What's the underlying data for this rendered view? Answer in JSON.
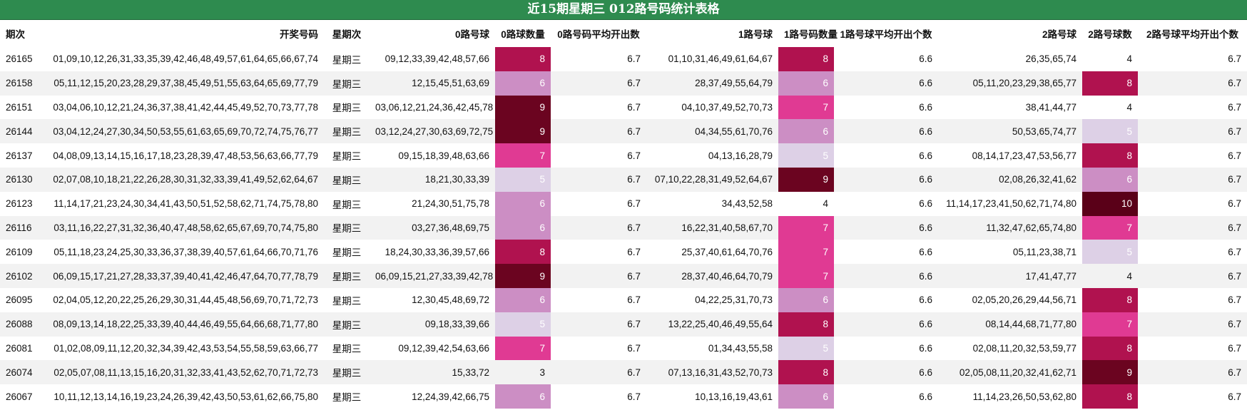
{
  "title": "近15期星期三 012路号码统计表格",
  "headers": [
    "期次",
    "开奖号码",
    "星期次",
    "0路号球",
    "0路球数量",
    "0路号码平均开出数",
    "1路号球",
    "1路号码数量",
    "1路号球平均开出个数",
    "2路号球",
    "2路号球数",
    "2路号球平均开出个数"
  ],
  "colors": {
    "3": "#ffffff",
    "4": "#f2f2f2",
    "5": "#ddd0e6",
    "6": "#cc8ec4",
    "7": "#e03a93",
    "8": "#b0124f",
    "9": "#6b0420",
    "10": "#5a0018"
  },
  "rows": [
    {
      "issue": "26165",
      "numbers": "01,09,10,12,26,31,33,35,39,42,46,48,49,57,61,64,65,66,67,74",
      "weekday": "星期三",
      "z0": "09,12,33,39,42,48,57,66",
      "c0": "8",
      "a0": "6.7",
      "z1": "01,10,31,46,49,61,64,67",
      "c1": "8",
      "a1": "6.6",
      "z2": "26,35,65,74",
      "c2": "4",
      "a2": "6.7"
    },
    {
      "issue": "26158",
      "numbers": "05,11,12,15,20,23,28,29,37,38,45,49,51,55,63,64,65,69,77,79",
      "weekday": "星期三",
      "z0": "12,15,45,51,63,69",
      "c0": "6",
      "a0": "6.7",
      "z1": "28,37,49,55,64,79",
      "c1": "6",
      "a1": "6.6",
      "z2": "05,11,20,23,29,38,65,77",
      "c2": "8",
      "a2": "6.7"
    },
    {
      "issue": "26151",
      "numbers": "03,04,06,10,12,21,24,36,37,38,41,42,44,45,49,52,70,73,77,78",
      "weekday": "星期三",
      "z0": "03,06,12,21,24,36,42,45,78",
      "c0": "9",
      "a0": "6.7",
      "z1": "04,10,37,49,52,70,73",
      "c1": "7",
      "a1": "6.6",
      "z2": "38,41,44,77",
      "c2": "4",
      "a2": "6.7"
    },
    {
      "issue": "26144",
      "numbers": "03,04,12,24,27,30,34,50,53,55,61,63,65,69,70,72,74,75,76,77",
      "weekday": "星期三",
      "z0": "03,12,24,27,30,63,69,72,75",
      "c0": "9",
      "a0": "6.7",
      "z1": "04,34,55,61,70,76",
      "c1": "6",
      "a1": "6.6",
      "z2": "50,53,65,74,77",
      "c2": "5",
      "a2": "6.7"
    },
    {
      "issue": "26137",
      "numbers": "04,08,09,13,14,15,16,17,18,23,28,39,47,48,53,56,63,66,77,79",
      "weekday": "星期三",
      "z0": "09,15,18,39,48,63,66",
      "c0": "7",
      "a0": "6.7",
      "z1": "04,13,16,28,79",
      "c1": "5",
      "a1": "6.6",
      "z2": "08,14,17,23,47,53,56,77",
      "c2": "8",
      "a2": "6.7"
    },
    {
      "issue": "26130",
      "numbers": "02,07,08,10,18,21,22,26,28,30,31,32,33,39,41,49,52,62,64,67",
      "weekday": "星期三",
      "z0": "18,21,30,33,39",
      "c0": "5",
      "a0": "6.7",
      "z1": "07,10,22,28,31,49,52,64,67",
      "c1": "9",
      "a1": "6.6",
      "z2": "02,08,26,32,41,62",
      "c2": "6",
      "a2": "6.7"
    },
    {
      "issue": "26123",
      "numbers": "11,14,17,21,23,24,30,34,41,43,50,51,52,58,62,71,74,75,78,80",
      "weekday": "星期三",
      "z0": "21,24,30,51,75,78",
      "c0": "6",
      "a0": "6.7",
      "z1": "34,43,52,58",
      "c1": "4",
      "a1": "6.6",
      "z2": "11,14,17,23,41,50,62,71,74,80",
      "c2": "10",
      "a2": "6.7"
    },
    {
      "issue": "26116",
      "numbers": "03,11,16,22,27,31,32,36,40,47,48,58,62,65,67,69,70,74,75,80",
      "weekday": "星期三",
      "z0": "03,27,36,48,69,75",
      "c0": "6",
      "a0": "6.7",
      "z1": "16,22,31,40,58,67,70",
      "c1": "7",
      "a1": "6.6",
      "z2": "11,32,47,62,65,74,80",
      "c2": "7",
      "a2": "6.7"
    },
    {
      "issue": "26109",
      "numbers": "05,11,18,23,24,25,30,33,36,37,38,39,40,57,61,64,66,70,71,76",
      "weekday": "星期三",
      "z0": "18,24,30,33,36,39,57,66",
      "c0": "8",
      "a0": "6.7",
      "z1": "25,37,40,61,64,70,76",
      "c1": "7",
      "a1": "6.6",
      "z2": "05,11,23,38,71",
      "c2": "5",
      "a2": "6.7"
    },
    {
      "issue": "26102",
      "numbers": "06,09,15,17,21,27,28,33,37,39,40,41,42,46,47,64,70,77,78,79",
      "weekday": "星期三",
      "z0": "06,09,15,21,27,33,39,42,78",
      "c0": "9",
      "a0": "6.7",
      "z1": "28,37,40,46,64,70,79",
      "c1": "7",
      "a1": "6.6",
      "z2": "17,41,47,77",
      "c2": "4",
      "a2": "6.7"
    },
    {
      "issue": "26095",
      "numbers": "02,04,05,12,20,22,25,26,29,30,31,44,45,48,56,69,70,71,72,73",
      "weekday": "星期三",
      "z0": "12,30,45,48,69,72",
      "c0": "6",
      "a0": "6.7",
      "z1": "04,22,25,31,70,73",
      "c1": "6",
      "a1": "6.6",
      "z2": "02,05,20,26,29,44,56,71",
      "c2": "8",
      "a2": "6.7"
    },
    {
      "issue": "26088",
      "numbers": "08,09,13,14,18,22,25,33,39,40,44,46,49,55,64,66,68,71,77,80",
      "weekday": "星期三",
      "z0": "09,18,33,39,66",
      "c0": "5",
      "a0": "6.7",
      "z1": "13,22,25,40,46,49,55,64",
      "c1": "8",
      "a1": "6.6",
      "z2": "08,14,44,68,71,77,80",
      "c2": "7",
      "a2": "6.7"
    },
    {
      "issue": "26081",
      "numbers": "01,02,08,09,11,12,20,32,34,39,42,43,53,54,55,58,59,63,66,77",
      "weekday": "星期三",
      "z0": "09,12,39,42,54,63,66",
      "c0": "7",
      "a0": "6.7",
      "z1": "01,34,43,55,58",
      "c1": "5",
      "a1": "6.6",
      "z2": "02,08,11,20,32,53,59,77",
      "c2": "8",
      "a2": "6.7"
    },
    {
      "issue": "26074",
      "numbers": "02,05,07,08,11,13,15,16,20,31,32,33,41,43,52,62,70,71,72,73",
      "weekday": "星期三",
      "z0": "15,33,72",
      "c0": "3",
      "a0": "6.7",
      "z1": "07,13,16,31,43,52,70,73",
      "c1": "8",
      "a1": "6.6",
      "z2": "02,05,08,11,20,32,41,62,71",
      "c2": "9",
      "a2": "6.7"
    },
    {
      "issue": "26067",
      "numbers": "10,11,12,13,14,16,19,23,24,26,39,42,43,50,53,61,62,66,75,80",
      "weekday": "星期三",
      "z0": "12,24,39,42,66,75",
      "c0": "6",
      "a0": "6.7",
      "z1": "10,13,16,19,43,61",
      "c1": "6",
      "a1": "6.6",
      "z2": "11,14,23,26,50,53,62,80",
      "c2": "8",
      "a2": "6.7"
    }
  ]
}
